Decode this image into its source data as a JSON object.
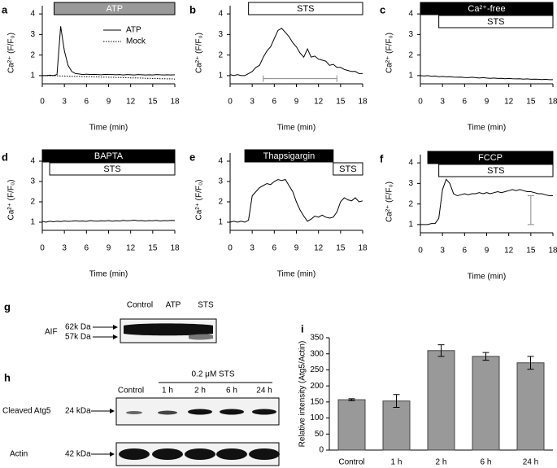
{
  "chart_data": [
    {
      "type": "line",
      "panel": "a",
      "ylabel": "Ca²⁺ (F/F₀)",
      "xlabel": "Time (min)",
      "xlim": [
        0,
        18
      ],
      "ylim": [
        0.6,
        4.4
      ],
      "xticks": [
        0,
        3,
        6,
        9,
        12,
        15,
        18
      ],
      "yticks": [
        1,
        2,
        3,
        4
      ],
      "legend": "upper right",
      "periods": [
        {
          "label": "ATP",
          "start": 1.6,
          "end": 18,
          "row": 0,
          "fill": "#999999",
          "text_color": "#ffffff"
        }
      ],
      "x": [
        0,
        0.5,
        1,
        1.5,
        2,
        2.5,
        3,
        3.5,
        4,
        4.5,
        5,
        5.5,
        6,
        6.5,
        7,
        7.5,
        8,
        8.5,
        9,
        9.5,
        10,
        10.5,
        11,
        11.5,
        12,
        12.5,
        13,
        13.5,
        14,
        14.5,
        15,
        15.5,
        16,
        16.5,
        17,
        17.5,
        18
      ],
      "series": [
        {
          "name": "ATP",
          "color": "#000000",
          "style": "solid",
          "values": [
            1.0,
            1.0,
            1.02,
            1.0,
            1.05,
            3.4,
            2.2,
            1.5,
            1.2,
            1.1,
            1.08,
            1.05,
            1.07,
            1.05,
            1.06,
            1.05,
            1.04,
            1.06,
            1.05,
            1.05,
            1.04,
            1.05,
            1.03,
            1.05,
            1.04,
            1.03,
            1.05,
            1.04,
            1.03,
            1.04,
            1.03,
            1.05,
            1.04,
            1.03,
            1.04,
            1.03,
            1.04
          ]
        },
        {
          "name": "Mock",
          "color": "#000000",
          "style": "dotted",
          "values": [
            1.0,
            1.0,
            0.99,
            1.0,
            0.99,
            0.98,
            0.98,
            0.97,
            0.97,
            0.96,
            0.96,
            0.95,
            0.95,
            0.95,
            0.94,
            0.94,
            0.93,
            0.93,
            0.92,
            0.92,
            0.91,
            0.91,
            0.9,
            0.9,
            0.89,
            0.89,
            0.88,
            0.88,
            0.87,
            0.87,
            0.86,
            0.86,
            0.85,
            0.85,
            0.84,
            0.84,
            0.83
          ]
        }
      ]
    },
    {
      "type": "line",
      "panel": "b",
      "ylabel": "Ca²⁺ (F/F₀)",
      "xlabel": "Time (min)",
      "xlim": [
        0,
        18
      ],
      "ylim": [
        0.6,
        4.4
      ],
      "xticks": [
        0,
        3,
        6,
        9,
        12,
        15,
        18
      ],
      "yticks": [
        1,
        2,
        3,
        4
      ],
      "periods": [
        {
          "label": "STS",
          "start": 2.5,
          "end": 18,
          "row": 0,
          "fill": "#ffffff",
          "text_color": "#000000"
        }
      ],
      "range_bar": {
        "x": [
          4.5,
          14.5
        ],
        "y": 0.85,
        "color": "#888888"
      },
      "x": [
        0,
        0.5,
        1,
        1.5,
        2,
        2.5,
        3,
        3.5,
        4,
        4.5,
        5,
        5.5,
        6,
        6.5,
        7,
        7.5,
        8,
        8.5,
        9,
        9.5,
        10,
        10.5,
        11,
        11.5,
        12,
        12.5,
        13,
        13.5,
        14,
        14.5,
        15,
        15.5,
        16,
        16.5,
        17,
        17.5,
        18
      ],
      "series": [
        {
          "color": "#000000",
          "style": "solid",
          "values": [
            1.05,
            1.0,
            1.05,
            1.0,
            1.0,
            1.1,
            1.2,
            1.4,
            1.5,
            1.9,
            2.2,
            2.4,
            2.8,
            3.2,
            3.3,
            3.1,
            2.9,
            2.6,
            2.4,
            2.1,
            1.9,
            2.3,
            1.9,
            1.95,
            1.8,
            1.75,
            1.7,
            1.5,
            1.55,
            1.4,
            1.4,
            1.3,
            1.25,
            1.2,
            1.2,
            1.1,
            1.1
          ]
        }
      ]
    },
    {
      "type": "line",
      "panel": "c",
      "ylabel": "Ca²⁺ (F/F₀)",
      "xlabel": "Time (min)",
      "xlim": [
        0,
        18
      ],
      "ylim": [
        0.6,
        4.4
      ],
      "xticks": [
        0,
        3,
        6,
        9,
        12,
        15,
        18
      ],
      "yticks": [
        1,
        2,
        3,
        4
      ],
      "periods": [
        {
          "label": "Ca²⁺-free",
          "start": 0,
          "end": 18,
          "row": 0,
          "fill": "#000000",
          "text_color": "#ffffff"
        },
        {
          "label": "STS",
          "start": 2.5,
          "end": 18,
          "row": 1,
          "fill": "#ffffff",
          "text_color": "#000000"
        }
      ],
      "x": [
        0,
        0.5,
        1,
        1.5,
        2,
        2.5,
        3,
        3.5,
        4,
        4.5,
        5,
        5.5,
        6,
        6.5,
        7,
        7.5,
        8,
        8.5,
        9,
        9.5,
        10,
        10.5,
        11,
        11.5,
        12,
        12.5,
        13,
        13.5,
        14,
        14.5,
        15,
        15.5,
        16,
        16.5,
        17,
        17.5,
        18
      ],
      "series": [
        {
          "color": "#000000",
          "style": "solid",
          "values": [
            1.0,
            0.98,
            1.0,
            0.97,
            0.98,
            0.95,
            0.96,
            0.94,
            0.95,
            0.93,
            0.92,
            0.93,
            0.91,
            0.9,
            0.92,
            0.9,
            0.88,
            0.9,
            0.88,
            0.87,
            0.88,
            0.86,
            0.87,
            0.85,
            0.86,
            0.85,
            0.84,
            0.85,
            0.83,
            0.84,
            0.82,
            0.83,
            0.82,
            0.81,
            0.82,
            0.8,
            0.8
          ]
        }
      ]
    },
    {
      "type": "line",
      "panel": "d",
      "ylabel": "Ca²⁺ (F/F₀)",
      "xlabel": "Time (min)",
      "xlim": [
        0,
        18
      ],
      "ylim": [
        0.6,
        4.4
      ],
      "xticks": [
        0,
        3,
        6,
        9,
        12,
        15,
        18
      ],
      "yticks": [
        1,
        2,
        3,
        4
      ],
      "periods": [
        {
          "label": "BAPTA",
          "start": 0,
          "end": 18,
          "row": 0,
          "fill": "#000000",
          "text_color": "#ffffff"
        },
        {
          "label": "STS",
          "start": 1,
          "end": 18,
          "row": 1,
          "fill": "#ffffff",
          "text_color": "#000000"
        }
      ],
      "x": [
        0,
        0.5,
        1,
        1.5,
        2,
        2.5,
        3,
        3.5,
        4,
        4.5,
        5,
        5.5,
        6,
        6.5,
        7,
        7.5,
        8,
        8.5,
        9,
        9.5,
        10,
        10.5,
        11,
        11.5,
        12,
        12.5,
        13,
        13.5,
        14,
        14.5,
        15,
        15.5,
        16,
        16.5,
        17,
        17.5,
        18
      ],
      "series": [
        {
          "color": "#000000",
          "style": "solid",
          "values": [
            1.05,
            1.0,
            1.05,
            1.02,
            1.05,
            1.03,
            1.06,
            1.04,
            1.05,
            1.07,
            1.05,
            1.06,
            1.04,
            1.08,
            1.06,
            1.05,
            1.07,
            1.06,
            1.08,
            1.05,
            1.07,
            1.06,
            1.09,
            1.07,
            1.08,
            1.1,
            1.07,
            1.08,
            1.06,
            1.08,
            1.07,
            1.09,
            1.06,
            1.08,
            1.07,
            1.09,
            1.08
          ]
        }
      ]
    },
    {
      "type": "line",
      "panel": "e",
      "ylabel": "Ca²⁺ (F/F₀)",
      "xlabel": "Time (min)",
      "xlim": [
        0,
        18
      ],
      "ylim": [
        0.6,
        4.4
      ],
      "xticks": [
        0,
        3,
        6,
        9,
        12,
        15,
        18
      ],
      "yticks": [
        1,
        2,
        3,
        4
      ],
      "periods": [
        {
          "label": "Thapsigargin",
          "start": 2,
          "end": 14,
          "row": 0,
          "fill": "#000000",
          "text_color": "#ffffff"
        },
        {
          "label": "STS",
          "start": 14,
          "end": 18,
          "row": 1,
          "fill": "#ffffff",
          "text_color": "#000000"
        }
      ],
      "x": [
        0,
        0.5,
        1,
        1.5,
        2,
        2.5,
        3,
        3.5,
        4,
        4.5,
        5,
        5.5,
        6,
        6.5,
        7,
        7.5,
        8,
        8.5,
        9,
        9.5,
        10,
        10.5,
        11,
        11.5,
        12,
        12.5,
        13,
        13.5,
        14,
        14.5,
        15,
        15.5,
        16,
        16.5,
        17,
        17.5,
        18
      ],
      "series": [
        {
          "color": "#000000",
          "style": "solid",
          "values": [
            1.0,
            1.05,
            1.0,
            1.05,
            1.0,
            1.1,
            2.3,
            2.5,
            2.7,
            2.8,
            2.9,
            2.85,
            3.0,
            3.1,
            3.05,
            3.1,
            2.8,
            2.5,
            2.0,
            1.6,
            1.3,
            1.05,
            1.15,
            1.3,
            1.25,
            1.35,
            1.25,
            1.2,
            1.25,
            1.5,
            2.0,
            2.2,
            2.1,
            2.05,
            2.2,
            2.0,
            2.05
          ]
        }
      ]
    },
    {
      "type": "line",
      "panel": "f",
      "ylabel": "Ca²⁺ (F/F₀)",
      "xlabel": "Time (min)",
      "xlim": [
        0,
        18
      ],
      "ylim": [
        0.6,
        4.4
      ],
      "xticks": [
        0,
        3,
        6,
        9,
        12,
        15,
        18
      ],
      "yticks": [
        1,
        2,
        3,
        4
      ],
      "periods": [
        {
          "label": "FCCP",
          "start": 1,
          "end": 18,
          "row": 0,
          "fill": "#000000",
          "text_color": "#ffffff"
        },
        {
          "label": "STS",
          "start": 2.5,
          "end": 18,
          "row": 1,
          "fill": "#ffffff",
          "text_color": "#000000"
        }
      ],
      "range_bar": {
        "x": 15,
        "y": [
          1,
          2.4
        ],
        "color": "#888888"
      },
      "x": [
        0,
        0.5,
        1,
        1.5,
        2,
        2.5,
        3,
        3.5,
        4,
        4.5,
        5,
        5.5,
        6,
        6.5,
        7,
        7.5,
        8,
        8.5,
        9,
        9.5,
        10,
        10.5,
        11,
        11.5,
        12,
        12.5,
        13,
        13.5,
        14,
        14.5,
        15,
        15.5,
        16,
        16.5,
        17,
        17.5,
        18
      ],
      "series": [
        {
          "color": "#000000",
          "style": "solid",
          "values": [
            1.0,
            1.0,
            1.0,
            1.05,
            1.05,
            1.3,
            2.7,
            3.2,
            3.0,
            2.5,
            2.4,
            2.45,
            2.5,
            2.45,
            2.5,
            2.5,
            2.55,
            2.5,
            2.55,
            2.5,
            2.55,
            2.6,
            2.55,
            2.6,
            2.65,
            2.7,
            2.65,
            2.7,
            2.65,
            2.6,
            2.6,
            2.55,
            2.5,
            2.5,
            2.45,
            2.4,
            2.4
          ]
        }
      ]
    },
    {
      "type": "bar",
      "panel": "i",
      "ylabel": "Relative intensity (Atg5/Actin)",
      "categories": [
        "Control",
        "1 h",
        "2 h",
        "6 h",
        "24 h"
      ],
      "values": [
        157,
        153,
        310,
        292,
        272
      ],
      "errors": [
        3,
        20,
        18,
        12,
        20
      ],
      "color": "#999999",
      "ylim": [
        0,
        350
      ],
      "yticks": [
        0,
        50,
        100,
        150,
        200,
        250,
        300,
        350
      ]
    }
  ],
  "blots": {
    "g": {
      "panel": "g",
      "lanes": [
        "Control",
        "ATP",
        "STS"
      ],
      "protein": "AIF",
      "sizes": [
        "62k Da",
        "57k Da"
      ]
    },
    "h": {
      "panel": "h",
      "treatment": "0.2 μM STS",
      "lanes": [
        "Control",
        "1 h",
        "2 h",
        "6 h",
        "24 h"
      ],
      "rows": [
        {
          "protein": "Cleaved Atg5",
          "size": "24 kDa"
        },
        {
          "protein": "Actin",
          "size": "42 kDa"
        }
      ]
    }
  }
}
